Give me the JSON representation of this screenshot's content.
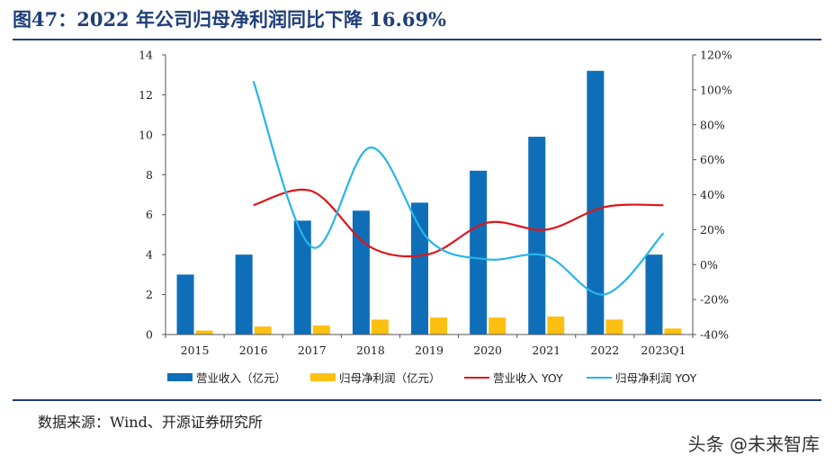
{
  "title": "图47：2022 年公司归母净利润同比下降 16.69%",
  "source": "数据来源：Wind、开源证券研究所",
  "watermark": "头条 @未来智库",
  "colors": {
    "revenue_bar": "#0e6fb8",
    "profit_bar": "#fdc011",
    "revenue_yoy": "#e01418",
    "profit_yoy": "#27b5ea",
    "title": "#1f3f78"
  },
  "chart_data": {
    "type": "bar",
    "categories": [
      "2015",
      "2016",
      "2017",
      "2018",
      "2019",
      "2020",
      "2021",
      "2022",
      "2023Q1"
    ],
    "y_left": {
      "min": 0,
      "max": 14,
      "step": 2
    },
    "y_right": {
      "min": -40,
      "max": 120,
      "step": 20,
      "unit": "%"
    },
    "series": [
      {
        "name": "营业收入（亿元）",
        "kind": "bar",
        "axis": "left",
        "values": [
          3.0,
          4.0,
          5.7,
          6.2,
          6.6,
          8.2,
          9.9,
          13.2,
          4.0
        ]
      },
      {
        "name": "归母净利润（亿元）",
        "kind": "bar",
        "axis": "left",
        "values": [
          0.2,
          0.4,
          0.45,
          0.75,
          0.85,
          0.85,
          0.9,
          0.75,
          0.3
        ]
      },
      {
        "name": "营业收入 YOY",
        "kind": "line",
        "axis": "right",
        "values": [
          null,
          34,
          42,
          10,
          6,
          24,
          20,
          33,
          34
        ]
      },
      {
        "name": "归母净利润 YOY",
        "kind": "line",
        "axis": "right",
        "values": [
          null,
          105,
          10,
          67,
          14,
          3,
          5,
          -17,
          18
        ]
      }
    ]
  }
}
